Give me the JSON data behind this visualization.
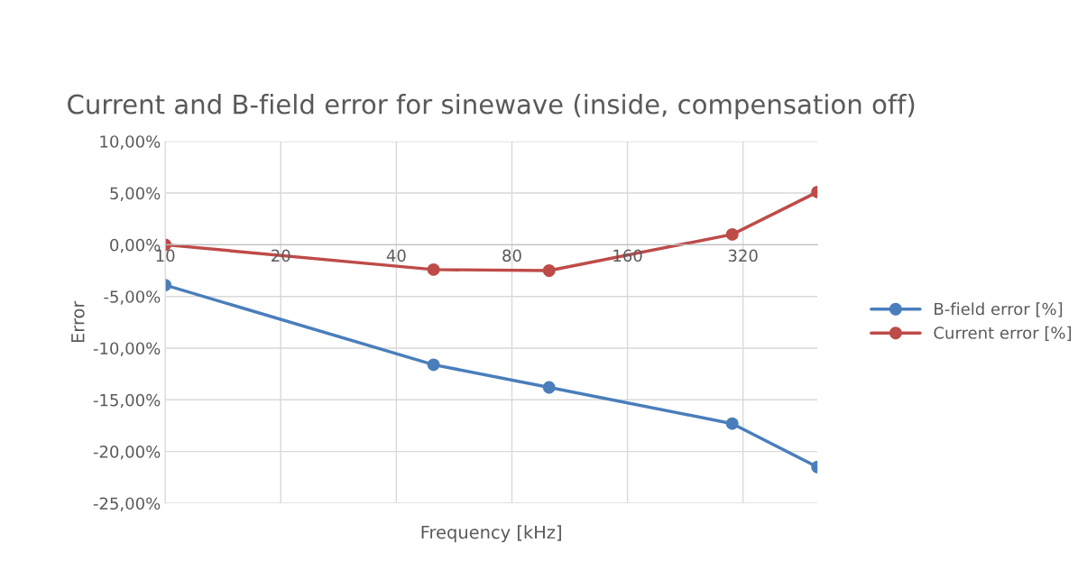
{
  "chart_data": {
    "type": "line",
    "title": "Current and B-field error for sinewave (inside, compensation off)",
    "xlabel": "Frequency [kHz]",
    "ylabel": "Error",
    "x": [
      10,
      50,
      100,
      300,
      500
    ],
    "series": [
      {
        "name": "B-field error [%]",
        "color": "#4a7ebb",
        "values": [
          -3.9,
          -11.6,
          -13.8,
          -17.3,
          -21.5
        ]
      },
      {
        "name": "Current error [%]",
        "color": "#be4b48",
        "values": [
          0.0,
          -2.4,
          -2.5,
          1.0,
          5.1
        ]
      }
    ],
    "log": "x",
    "xlim": [
      10,
      500
    ],
    "xticks": [
      10,
      20,
      40,
      80,
      160,
      320
    ],
    "ylim": [
      -25,
      10
    ],
    "yticks": [
      {
        "value": -25,
        "label": "-25,00%"
      },
      {
        "value": -20,
        "label": "-20,00%"
      },
      {
        "value": -15,
        "label": "-15,00%"
      },
      {
        "value": -10,
        "label": "-10,00%"
      },
      {
        "value": -5,
        "label": "-5,00%"
      },
      {
        "value": 0,
        "label": "0,00%"
      },
      {
        "value": 5,
        "label": "5,00%"
      },
      {
        "value": 10,
        "label": "10,00%"
      }
    ],
    "grid": true,
    "legend": "right",
    "marker": "circle",
    "line_style": "solid"
  }
}
